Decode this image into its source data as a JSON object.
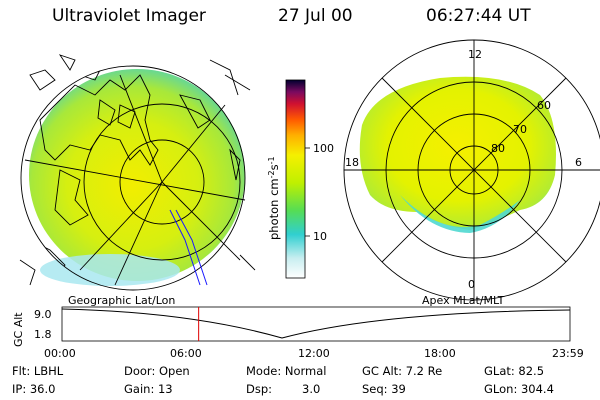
{
  "header": {
    "instrument": "Ultraviolet Imager",
    "date": "27 Jul 00",
    "time": "06:27:44 UT"
  },
  "geographic_panel": {
    "label": "Geographic Lat/Lon"
  },
  "apex_panel": {
    "label": "Apex MLat/MLT",
    "mlt_labels": [
      "12",
      "18",
      "6",
      "0"
    ],
    "mlat_labels": [
      "60",
      "70",
      "80"
    ]
  },
  "colorbar": {
    "unit_label": "photon cm",
    "unit_sup1": "-2",
    "unit_mid": "s",
    "unit_sup2": "-1",
    "ticks": [
      "100",
      "10"
    ],
    "colors": [
      "#000033",
      "#5a0a5a",
      "#a00040",
      "#e00020",
      "#ff6a00",
      "#ffb000",
      "#f2f000",
      "#b8f000",
      "#58e050",
      "#2ad0c8",
      "#b8f0f0",
      "#ffffff"
    ]
  },
  "timeline": {
    "y_axis_label": "GC Alt",
    "y_ticks": [
      "9.0",
      "1.8"
    ],
    "x_ticks": [
      "00:00",
      "06:00",
      "12:00",
      "18:00",
      "23:59"
    ],
    "current_time_fraction": 0.269
  },
  "status": {
    "filter": "Flt: LBHL",
    "ip": "IP: 36.0",
    "door": "Door: Open",
    "gain": "Gain: 13",
    "mode": "Mode: Normal",
    "dsp_label": "Dsp:",
    "dsp_value": "3.0",
    "gc_alt": "GC Alt: 7.2 Re",
    "seq": "Seq: 39",
    "glat": "GLat:  82.5",
    "glon": "GLon: 304.4"
  }
}
